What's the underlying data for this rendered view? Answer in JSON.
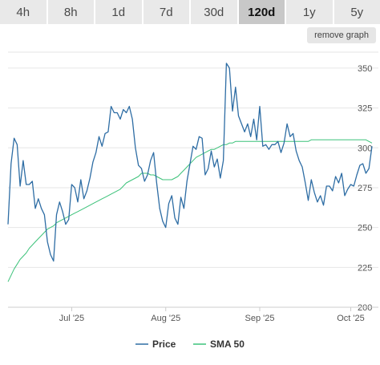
{
  "tabs": [
    {
      "label": "4h",
      "active": false
    },
    {
      "label": "8h",
      "active": false
    },
    {
      "label": "1d",
      "active": false
    },
    {
      "label": "7d",
      "active": false
    },
    {
      "label": "30d",
      "active": false
    },
    {
      "label": "120d",
      "active": true
    },
    {
      "label": "1y",
      "active": false
    },
    {
      "label": "5y",
      "active": false
    }
  ],
  "remove_graph_label": "remove graph",
  "chart_data": {
    "type": "line",
    "ylim": [
      200,
      360
    ],
    "yticks": [
      200,
      225,
      250,
      275,
      300,
      325,
      350
    ],
    "x_range_days": [
      0,
      120
    ],
    "xticks": [
      {
        "label": "Jul '25",
        "day": 21
      },
      {
        "label": "Aug '25",
        "day": 52
      },
      {
        "label": "Sep '25",
        "day": 83
      },
      {
        "label": "Oct '25",
        "day": 113
      }
    ],
    "grid": true,
    "legend_position": "bottom-center",
    "series": [
      {
        "name": "Price",
        "color": "#2e6da4",
        "x": [
          0,
          1,
          2,
          3,
          4,
          5,
          6,
          7,
          8,
          9,
          10,
          11,
          12,
          13,
          14,
          15,
          16,
          17,
          18,
          19,
          20,
          21,
          22,
          23,
          24,
          25,
          26,
          27,
          28,
          29,
          30,
          31,
          32,
          33,
          34,
          35,
          36,
          37,
          38,
          39,
          40,
          41,
          42,
          43,
          44,
          45,
          46,
          47,
          48,
          49,
          50,
          51,
          52,
          53,
          54,
          55,
          56,
          57,
          58,
          59,
          60,
          61,
          62,
          63,
          64,
          65,
          66,
          67,
          68,
          69,
          70,
          71,
          72,
          73,
          74,
          75,
          76,
          77,
          78,
          79,
          80,
          81,
          82,
          83,
          84,
          85,
          86,
          87,
          88,
          89,
          90,
          91,
          92,
          93,
          94,
          95,
          96,
          97,
          98,
          99,
          100,
          101,
          102,
          103,
          104,
          105,
          106,
          107,
          108,
          109,
          110,
          111,
          112,
          113,
          114,
          115,
          116,
          117,
          118,
          119,
          120
        ],
        "y": [
          252,
          290,
          306,
          302,
          276,
          292,
          277,
          277,
          279,
          262,
          268,
          262,
          258,
          241,
          233,
          229,
          258,
          266,
          260,
          252,
          255,
          277,
          275,
          266,
          280,
          268,
          273,
          281,
          291,
          297,
          307,
          301,
          309,
          310,
          326,
          322,
          322,
          318,
          324,
          322,
          326,
          318,
          300,
          289,
          287,
          279,
          283,
          292,
          297,
          278,
          262,
          254,
          250,
          265,
          270,
          256,
          252,
          269,
          262,
          279,
          290,
          301,
          299,
          307,
          306,
          283,
          287,
          298,
          288,
          293,
          281,
          292,
          353,
          350,
          323,
          338,
          320,
          315,
          310,
          315,
          307,
          318,
          305,
          326,
          301,
          302,
          299,
          302,
          302,
          304,
          297,
          303,
          315,
          307,
          309,
          298,
          292,
          288,
          278,
          267,
          280,
          272,
          266,
          270,
          264,
          276,
          276,
          273,
          282,
          278,
          284,
          270,
          274,
          277,
          276,
          283,
          289,
          290,
          284,
          287,
          301
        ],
        "line_width": 1.3
      },
      {
        "name": "SMA 50",
        "color": "#3cc27a",
        "x": [
          0,
          1,
          2,
          3,
          4,
          5,
          6,
          7,
          8,
          9,
          10,
          11,
          12,
          13,
          14,
          15,
          16,
          17,
          18,
          19,
          20,
          21,
          22,
          23,
          24,
          25,
          26,
          27,
          28,
          29,
          30,
          31,
          32,
          33,
          34,
          35,
          36,
          37,
          38,
          39,
          40,
          41,
          42,
          43,
          44,
          45,
          46,
          47,
          48,
          49,
          50,
          51,
          52,
          53,
          54,
          55,
          56,
          57,
          58,
          59,
          60,
          61,
          62,
          63,
          64,
          65,
          66,
          67,
          68,
          69,
          70,
          71,
          72,
          73,
          74,
          75,
          76,
          77,
          78,
          79,
          80,
          81,
          82,
          83,
          84,
          85,
          86,
          87,
          88,
          89,
          90,
          91,
          92,
          93,
          94,
          95,
          96,
          97,
          98,
          99,
          100,
          101,
          102,
          103,
          104,
          105,
          106,
          107,
          108,
          109,
          110,
          111,
          112,
          113,
          114,
          115,
          116,
          117,
          118,
          119,
          120
        ],
        "y": [
          216,
          220,
          224,
          227,
          230,
          232,
          234,
          237,
          239,
          241,
          243,
          245,
          247,
          249,
          250,
          251,
          253,
          254,
          255,
          256,
          257,
          258,
          259,
          260,
          261,
          262,
          263,
          264,
          265,
          266,
          267,
          268,
          269,
          270,
          271,
          272,
          273,
          274,
          276,
          278,
          279,
          280,
          281,
          282,
          284,
          284,
          284,
          283,
          283,
          282,
          281,
          280,
          280,
          280,
          280,
          281,
          282,
          284,
          286,
          288,
          290,
          292,
          294,
          295,
          296,
          297,
          298,
          299,
          299,
          300,
          301,
          302,
          302,
          303,
          303,
          304,
          304,
          304,
          304,
          304,
          304,
          304,
          304,
          304,
          304,
          304,
          304,
          304,
          304,
          304,
          304,
          304,
          304,
          304,
          304,
          304,
          304,
          304,
          304,
          304,
          305,
          305,
          305,
          305,
          305,
          305,
          305,
          305,
          305,
          305,
          305,
          305,
          305,
          305,
          305,
          305,
          305,
          305,
          305,
          304,
          303
        ],
        "line_width": 1.0
      }
    ]
  }
}
